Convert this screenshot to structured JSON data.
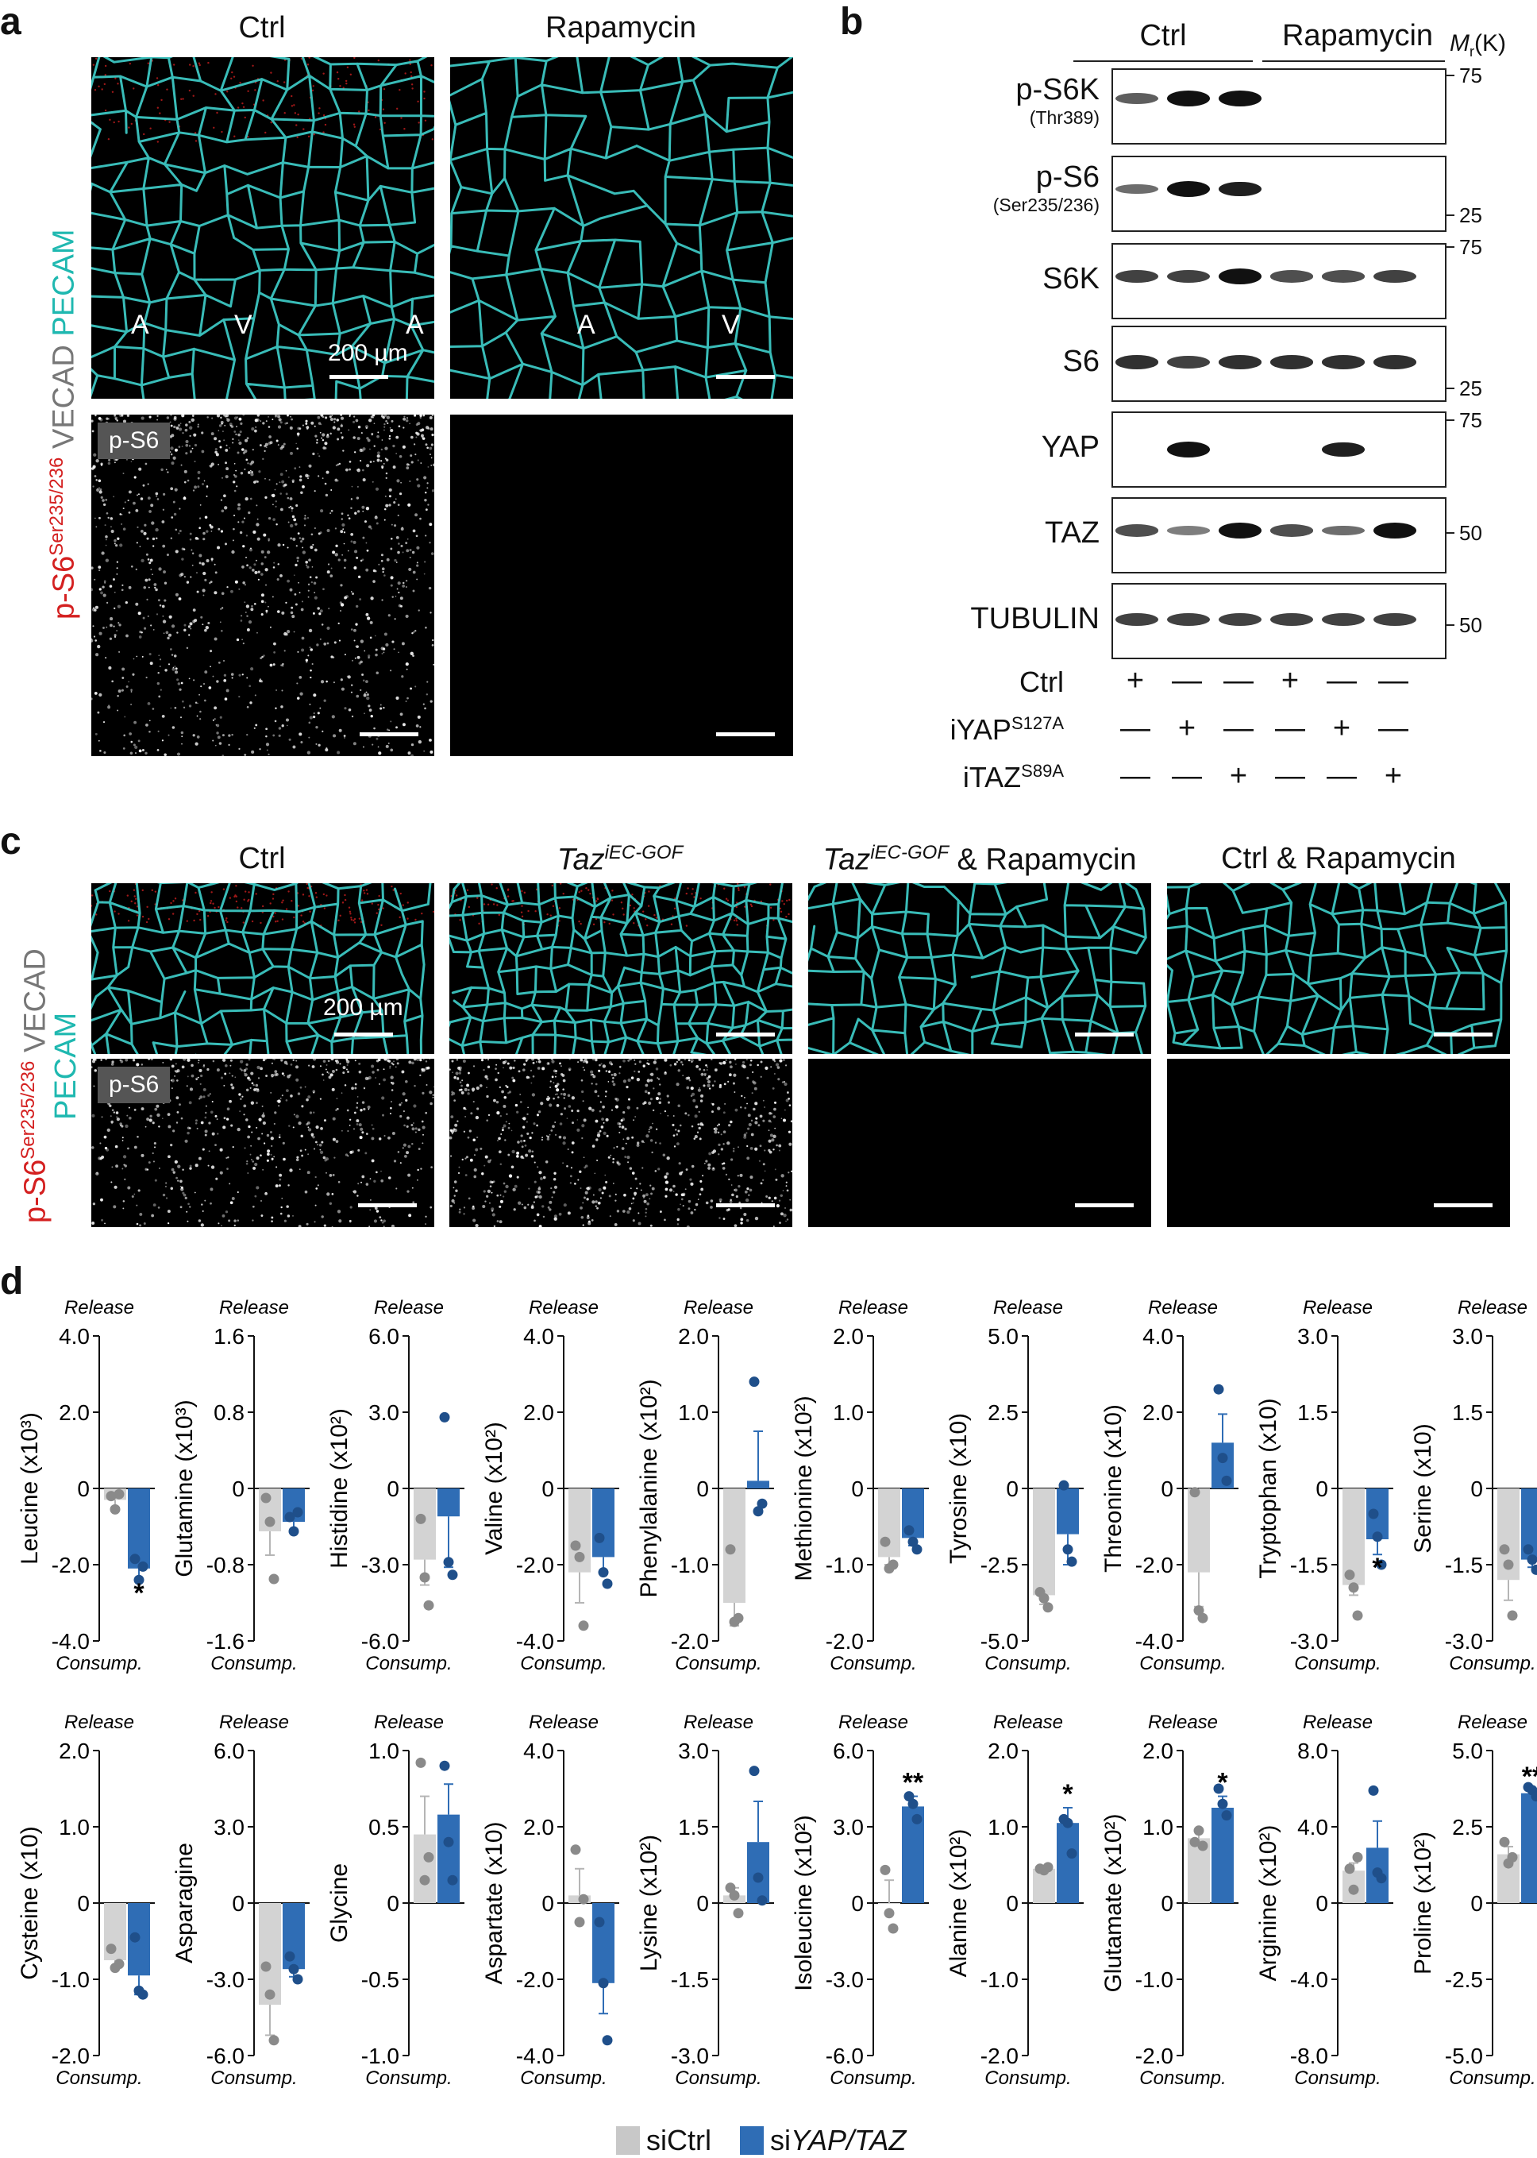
{
  "panel_a": {
    "letter": "a",
    "col_ctrl": "Ctrl",
    "col_rapa": "Rapamycin",
    "ylabel_main": "p-S6",
    "ylabel_sup": "Ser235/236",
    "ylabel_rest1": " VECAD ",
    "ylabel_rest2": "PECAM",
    "markers_ctrl": [
      "A",
      "V",
      "A"
    ],
    "markers_rapa": [
      "A",
      "V"
    ],
    "scale": "200 µm",
    "tag": "p-S6"
  },
  "panel_b": {
    "letter": "b",
    "col_ctrl": "Ctrl",
    "col_rapa": "Rapamycin",
    "mr_label": "M",
    "mr_sub": "r",
    "mr_unit": "(K)",
    "blots": [
      {
        "main": "p-S6K",
        "sub": "(Thr389)",
        "mw": [
          "75"
        ]
      },
      {
        "main": "p-S6",
        "sub": "(Ser235/236)",
        "mw": [
          "25"
        ]
      },
      {
        "main": "S6K",
        "sub": "",
        "mw": [
          "75"
        ]
      },
      {
        "main": "S6",
        "sub": "",
        "mw": [
          "25"
        ]
      },
      {
        "main": "YAP",
        "sub": "",
        "mw": [
          "75"
        ]
      },
      {
        "main": "TAZ",
        "sub": "",
        "mw": [
          "50"
        ]
      },
      {
        "main": "TUBULIN",
        "sub": "",
        "mw": [
          "50"
        ]
      }
    ],
    "conditions": [
      {
        "label": "Ctrl",
        "sup": "",
        "marks": [
          "+",
          "—",
          "—",
          "+",
          "—",
          "—"
        ]
      },
      {
        "label": "iYAP",
        "sup": "S127A",
        "marks": [
          "—",
          "+",
          "—",
          "—",
          "+",
          "—"
        ]
      },
      {
        "label": "iTAZ",
        "sup": "S89A",
        "marks": [
          "—",
          "—",
          "+",
          "—",
          "—",
          "+"
        ]
      }
    ]
  },
  "panel_c": {
    "letter": "c",
    "titles": [
      "Ctrl",
      "Taz",
      "Taz",
      "Ctrl & Rapamycin"
    ],
    "taz_sup": "iEC-GOF",
    "taz_rapa_suffix": " & Rapamycin",
    "ylabel_main": "p-S6",
    "ylabel_sup": "Ser235/236",
    "ylabel_rest1": " VECAD",
    "ylabel_rest2": "PECAM",
    "scale": "200 µm",
    "tag": "p-S6"
  },
  "panel_d": {
    "letter": "d",
    "release": "Release",
    "consump": "Consump.",
    "legend": {
      "a": "siCtrl",
      "b_prefix": "si",
      "b_italic": "YAP/TAZ",
      "color_a": "#c8c8c8",
      "color_b": "#2f6db5"
    },
    "colors": {
      "ctrl_bar": "#d3d3d3",
      "ctrl_dot": "#8a8a8a",
      "si_bar": "#2f6db5",
      "si_dot": "#1f4f8a"
    }
  },
  "chart_data": [
    {
      "type": "bar",
      "title": "",
      "ylabel": "Leucine (x10³)",
      "ylim": [
        -4.0,
        4.0
      ],
      "ticks": [
        "4.0",
        "2.0",
        "0",
        "-2.0",
        "-4.0"
      ],
      "categories": [
        "siCtrl",
        "siYAP/TAZ"
      ],
      "values": [
        -0.3,
        -2.1
      ],
      "err": [
        0.2,
        0.3
      ],
      "points": [
        [
          -0.2,
          -0.55,
          -0.15
        ],
        [
          -1.85,
          -2.4,
          -2.05
        ]
      ],
      "sig": [
        "",
        "*"
      ]
    },
    {
      "type": "bar",
      "title": "",
      "ylabel": "Glutamine (x10³)",
      "ylim": [
        -1.6,
        1.6
      ],
      "ticks": [
        "1.6",
        "0.8",
        "0",
        "-0.8",
        "-1.6"
      ],
      "categories": [
        "siCtrl",
        "siYAP/TAZ"
      ],
      "values": [
        -0.45,
        -0.35
      ],
      "err": [
        0.25,
        0.1
      ],
      "points": [
        [
          -0.1,
          -0.35,
          -0.95
        ],
        [
          -0.3,
          -0.45,
          -0.25
        ]
      ],
      "sig": [
        "",
        ""
      ]
    },
    {
      "type": "bar",
      "title": "",
      "ylabel": "Histidine (x10²)",
      "ylim": [
        -6.0,
        6.0
      ],
      "ticks": [
        "6.0",
        "3.0",
        "0",
        "-3.0",
        "-6.0"
      ],
      "categories": [
        "siCtrl",
        "siYAP/TAZ"
      ],
      "values": [
        -2.8,
        -1.1
      ],
      "err": [
        1.0,
        2.0
      ],
      "points": [
        [
          -1.2,
          -3.5,
          -4.6
        ],
        [
          2.8,
          -2.9,
          -3.4
        ]
      ],
      "sig": [
        "",
        ""
      ]
    },
    {
      "type": "bar",
      "title": "",
      "ylabel": "Valine (x10²)",
      "ylim": [
        -4.0,
        4.0
      ],
      "ticks": [
        "4.0",
        "2.0",
        "0",
        "-2.0",
        "-4.0"
      ],
      "categories": [
        "siCtrl",
        "siYAP/TAZ"
      ],
      "values": [
        -2.2,
        -1.8
      ],
      "err": [
        0.8,
        0.4
      ],
      "points": [
        [
          -1.5,
          -1.8,
          -3.6
        ],
        [
          -1.3,
          -2.2,
          -2.5
        ]
      ],
      "sig": [
        "",
        ""
      ]
    },
    {
      "type": "bar",
      "title": "",
      "ylabel": "Phenylalanine (x10²)",
      "ylim": [
        -2.0,
        2.0
      ],
      "ticks": [
        "2.0",
        "1.0",
        "0",
        "-1.0",
        "-2.0"
      ],
      "categories": [
        "siCtrl",
        "siYAP/TAZ"
      ],
      "values": [
        -1.5,
        0.1
      ],
      "err": [
        0.3,
        0.65
      ],
      "points": [
        [
          -0.8,
          -1.75,
          -1.7
        ],
        [
          1.4,
          -0.3,
          -0.2
        ]
      ],
      "sig": [
        "",
        ""
      ]
    },
    {
      "type": "bar",
      "title": "",
      "ylabel": "Methionine (x10²)",
      "ylim": [
        -2.0,
        2.0
      ],
      "ticks": [
        "2.0",
        "1.0",
        "0",
        "-1.0",
        "-2.0"
      ],
      "categories": [
        "siCtrl",
        "siYAP/TAZ"
      ],
      "values": [
        -0.9,
        -0.65
      ],
      "err": [
        0.1,
        0.1
      ],
      "points": [
        [
          -0.7,
          -1.05,
          -1.0
        ],
        [
          -0.55,
          -0.7,
          -0.8
        ]
      ],
      "sig": [
        "",
        ""
      ]
    },
    {
      "type": "bar",
      "title": "",
      "ylabel": "Tyrosine (x10)",
      "ylim": [
        -5.0,
        5.0
      ],
      "ticks": [
        "5.0",
        "2.5",
        "0",
        "-2.5",
        "-5.0"
      ],
      "categories": [
        "siCtrl",
        "siYAP/TAZ"
      ],
      "values": [
        -3.5,
        -1.5
      ],
      "err": [
        0.3,
        1.0
      ],
      "points": [
        [
          -3.4,
          -3.6,
          -3.9
        ],
        [
          0.1,
          -2.0,
          -2.4
        ]
      ],
      "sig": [
        "",
        ""
      ]
    },
    {
      "type": "bar",
      "title": "",
      "ylabel": "Threonine (x10)",
      "ylim": [
        -4.0,
        4.0
      ],
      "ticks": [
        "4.0",
        "2.0",
        "0",
        "-2.0",
        "-4.0"
      ],
      "categories": [
        "siCtrl",
        "siYAP/TAZ"
      ],
      "values": [
        -2.2,
        1.2
      ],
      "err": [
        0.9,
        0.75
      ],
      "points": [
        [
          -0.1,
          -3.2,
          -3.4
        ],
        [
          2.6,
          0.8,
          0.2
        ]
      ],
      "sig": [
        "",
        ""
      ]
    },
    {
      "type": "bar",
      "title": "",
      "ylabel": "Tryptophan (x10)",
      "ylim": [
        -3.0,
        3.0
      ],
      "ticks": [
        "3.0",
        "1.5",
        "0",
        "-1.5",
        "-3.0"
      ],
      "categories": [
        "siCtrl",
        "siYAP/TAZ"
      ],
      "values": [
        -1.9,
        -1.0
      ],
      "err": [
        0.2,
        0.3
      ],
      "points": [
        [
          -1.7,
          -1.95,
          -2.5
        ],
        [
          -0.5,
          -0.95,
          -1.5
        ]
      ],
      "sig": [
        "",
        "*"
      ]
    },
    {
      "type": "bar",
      "title": "",
      "ylabel": "Serine (x10)",
      "ylim": [
        -3.0,
        3.0
      ],
      "ticks": [
        "3.0",
        "1.5",
        "0",
        "-1.5",
        "-3.0"
      ],
      "categories": [
        "siCtrl",
        "siYAP/TAZ"
      ],
      "values": [
        -1.8,
        -1.4
      ],
      "err": [
        0.4,
        0.15
      ],
      "points": [
        [
          -1.2,
          -1.5,
          -2.5
        ],
        [
          -1.2,
          -1.4,
          -1.6
        ]
      ],
      "sig": [
        "",
        ""
      ]
    },
    {
      "type": "bar",
      "title": "",
      "ylabel": "Cysteine (x10)",
      "ylim": [
        -2.0,
        2.0
      ],
      "ticks": [
        "2.0",
        "1.0",
        "0",
        "-1.0",
        "-2.0"
      ],
      "categories": [
        "siCtrl",
        "siYAP/TAZ"
      ],
      "values": [
        -0.75,
        -0.95
      ],
      "err": [
        0.1,
        0.25
      ],
      "points": [
        [
          -0.6,
          -0.85,
          -0.8
        ],
        [
          -0.45,
          -1.15,
          -1.2
        ]
      ],
      "sig": [
        "",
        ""
      ]
    },
    {
      "type": "bar",
      "title": "",
      "ylabel": "Asparagine",
      "ylim": [
        -6.0,
        6.0
      ],
      "ticks": [
        "6.0",
        "3.0",
        "0",
        "-3.0",
        "-6.0"
      ],
      "categories": [
        "siCtrl",
        "siYAP/TAZ"
      ],
      "values": [
        -4.0,
        -2.6
      ],
      "err": [
        1.2,
        0.3
      ],
      "points": [
        [
          -2.5,
          -3.6,
          -5.4
        ],
        [
          -2.1,
          -2.6,
          -3.0
        ]
      ],
      "sig": [
        "",
        ""
      ]
    },
    {
      "type": "bar",
      "title": "",
      "ylabel": "Glycine",
      "ylim": [
        -1.0,
        1.0
      ],
      "ticks": [
        "1.0",
        "0.5",
        "0",
        "-0.5",
        "-1.0"
      ],
      "categories": [
        "siCtrl",
        "siYAP/TAZ"
      ],
      "values": [
        0.45,
        0.58
      ],
      "err": [
        0.25,
        0.2
      ],
      "points": [
        [
          0.92,
          0.15,
          0.3
        ],
        [
          0.9,
          0.4,
          0.15
        ]
      ],
      "sig": [
        "",
        ""
      ]
    },
    {
      "type": "bar",
      "title": "",
      "ylabel": "Aspartate (x10)",
      "ylim": [
        -4.0,
        4.0
      ],
      "ticks": [
        "4.0",
        "2.0",
        "0",
        "-2.0",
        "-4.0"
      ],
      "categories": [
        "siCtrl",
        "siYAP/TAZ"
      ],
      "values": [
        0.2,
        -2.1
      ],
      "err": [
        0.7,
        0.8
      ],
      "points": [
        [
          1.4,
          -0.5,
          0.1
        ],
        [
          -0.5,
          -2.1,
          -3.6
        ]
      ],
      "sig": [
        "",
        ""
      ]
    },
    {
      "type": "bar",
      "title": "",
      "ylabel": "Lysine (x10²)",
      "ylim": [
        -3.0,
        3.0
      ],
      "ticks": [
        "3.0",
        "1.5",
        "0",
        "-1.5",
        "-3.0"
      ],
      "categories": [
        "siCtrl",
        "siYAP/TAZ"
      ],
      "values": [
        0.15,
        1.2
      ],
      "err": [
        0.15,
        0.8
      ],
      "points": [
        [
          0.3,
          0.15,
          -0.2
        ],
        [
          2.6,
          0.5,
          0.05
        ]
      ],
      "sig": [
        "",
        ""
      ]
    },
    {
      "type": "bar",
      "title": "",
      "ylabel": "Isoleucine (x10²)",
      "ylim": [
        -6.0,
        6.0
      ],
      "ticks": [
        "6.0",
        "3.0",
        "0",
        "-3.0",
        "-6.0"
      ],
      "categories": [
        "siCtrl",
        "siYAP/TAZ"
      ],
      "values": [
        0.0,
        3.8
      ],
      "err": [
        0.9,
        0.4
      ],
      "points": [
        [
          1.3,
          -0.4,
          -1.0
        ],
        [
          4.2,
          3.9,
          3.3
        ]
      ],
      "sig": [
        "",
        "**"
      ]
    },
    {
      "type": "bar",
      "title": "",
      "ylabel": "Alanine (x10²)",
      "ylim": [
        -2.0,
        2.0
      ],
      "ticks": [
        "2.0",
        "1.0",
        "0",
        "-1.0",
        "-2.0"
      ],
      "categories": [
        "siCtrl",
        "siYAP/TAZ"
      ],
      "values": [
        0.45,
        1.05
      ],
      "err": [
        0.03,
        0.2
      ],
      "points": [
        [
          0.45,
          0.43,
          0.47
        ],
        [
          1.1,
          1.05,
          0.65
        ]
      ],
      "sig": [
        "",
        "*"
      ]
    },
    {
      "type": "bar",
      "title": "",
      "ylabel": "Glutamate (x10²)",
      "ylim": [
        -2.0,
        2.0
      ],
      "ticks": [
        "2.0",
        "1.0",
        "0",
        "-1.0",
        "-2.0"
      ],
      "categories": [
        "siCtrl",
        "siYAP/TAZ"
      ],
      "values": [
        0.85,
        1.25
      ],
      "err": [
        0.1,
        0.15
      ],
      "points": [
        [
          0.8,
          0.95,
          0.75
        ],
        [
          1.5,
          1.3,
          1.15
        ]
      ],
      "sig": [
        "",
        "*"
      ]
    },
    {
      "type": "bar",
      "title": "",
      "ylabel": "Arginine (x10²)",
      "ylim": [
        -8.0,
        8.0
      ],
      "ticks": [
        "8.0",
        "4.0",
        "0",
        "-4.0",
        "-8.0"
      ],
      "categories": [
        "siCtrl",
        "siYAP/TAZ"
      ],
      "values": [
        1.7,
        2.9
      ],
      "err": [
        0.4,
        1.4
      ],
      "points": [
        [
          1.8,
          0.7,
          2.4
        ],
        [
          5.9,
          1.6,
          1.3
        ]
      ],
      "sig": [
        "",
        ""
      ]
    },
    {
      "type": "bar",
      "title": "",
      "ylabel": "Proline (x10²)",
      "ylim": [
        -5.0,
        5.0
      ],
      "ticks": [
        "5.0",
        "2.5",
        "0",
        "-2.5",
        "-5.0"
      ],
      "categories": [
        "siCtrl",
        "siYAP/TAZ"
      ],
      "values": [
        1.6,
        3.6
      ],
      "err": [
        0.25,
        0.1
      ],
      "points": [
        [
          2.0,
          1.3,
          1.5
        ],
        [
          3.8,
          3.7,
          3.5
        ]
      ],
      "sig": [
        "",
        "**"
      ]
    }
  ]
}
